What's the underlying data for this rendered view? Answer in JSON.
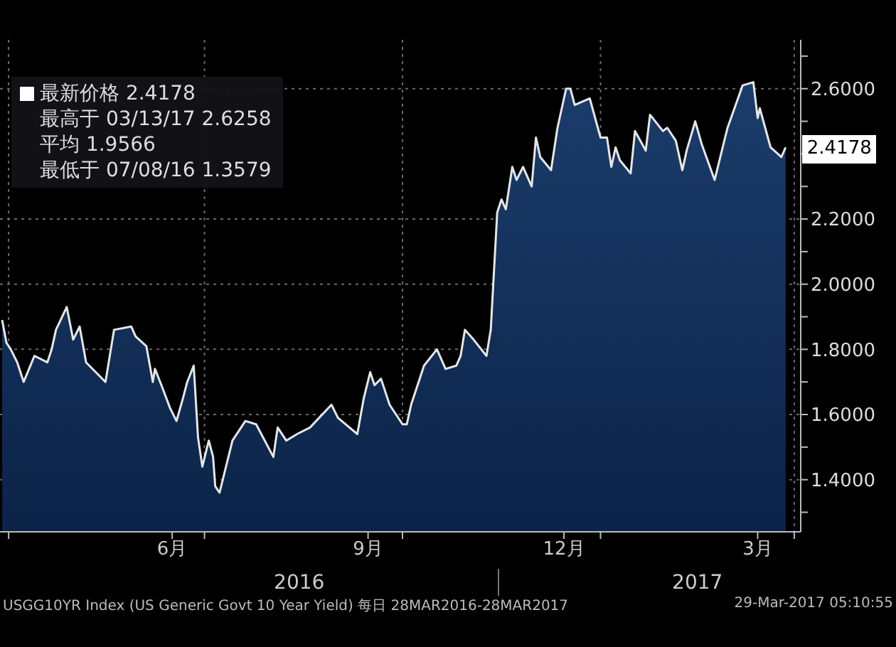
{
  "chart_data": {
    "type": "area",
    "x": [
      "2016-03-29",
      "2016-03-31",
      "2016-04-02",
      "2016-04-05",
      "2016-04-08",
      "2016-04-13",
      "2016-04-19",
      "2016-04-21",
      "2016-04-23",
      "2016-04-28",
      "2016-05-01",
      "2016-05-04",
      "2016-05-07",
      "2016-05-16",
      "2016-05-20",
      "2016-05-28",
      "2016-05-30",
      "2016-06-04",
      "2016-06-07",
      "2016-06-08",
      "2016-06-11",
      "2016-06-15",
      "2016-06-18",
      "2016-06-21",
      "2016-06-23",
      "2016-06-26",
      "2016-06-28",
      "2016-06-30",
      "2016-07-03",
      "2016-07-05",
      "2016-07-06",
      "2016-07-08",
      "2016-07-14",
      "2016-07-20",
      "2016-07-25",
      "2016-08-02",
      "2016-08-04",
      "2016-08-08",
      "2016-08-13",
      "2016-08-19",
      "2016-08-29",
      "2016-09-01",
      "2016-09-10",
      "2016-09-13",
      "2016-09-16",
      "2016-09-18",
      "2016-09-21",
      "2016-09-25",
      "2016-10-01",
      "2016-10-03",
      "2016-10-05",
      "2016-10-08",
      "2016-10-11",
      "2016-10-17",
      "2016-10-21",
      "2016-10-26",
      "2016-10-28",
      "2016-10-30",
      "2016-11-03",
      "2016-11-09",
      "2016-11-11",
      "2016-11-14",
      "2016-11-16",
      "2016-11-18",
      "2016-11-21",
      "2016-11-23",
      "2016-11-26",
      "2016-11-30",
      "2016-12-02",
      "2016-12-04",
      "2016-12-09",
      "2016-12-12",
      "2016-12-16",
      "2016-12-18",
      "2016-12-20",
      "2016-12-27",
      "2017-01-01",
      "2017-01-04",
      "2017-01-06",
      "2017-01-08",
      "2017-01-10",
      "2017-01-15",
      "2017-01-17",
      "2017-01-22",
      "2017-01-24",
      "2017-01-30",
      "2017-02-01",
      "2017-02-05",
      "2017-02-08",
      "2017-02-10",
      "2017-02-14",
      "2017-02-17",
      "2017-02-23",
      "2017-03-01",
      "2017-03-08",
      "2017-03-13",
      "2017-03-15",
      "2017-03-16",
      "2017-03-21",
      "2017-03-26",
      "2017-03-28"
    ],
    "series": [
      {
        "color": "#e6e6e6",
        "values": [
          1.89,
          1.82,
          1.8,
          1.76,
          1.7,
          1.78,
          1.76,
          1.8,
          1.86,
          1.93,
          1.83,
          1.87,
          1.76,
          1.7,
          1.86,
          1.87,
          1.84,
          1.81,
          1.7,
          1.74,
          1.69,
          1.62,
          1.58,
          1.65,
          1.7,
          1.75,
          1.53,
          1.44,
          1.52,
          1.47,
          1.38,
          1.36,
          1.52,
          1.58,
          1.57,
          1.47,
          1.56,
          1.52,
          1.54,
          1.56,
          1.63,
          1.59,
          1.54,
          1.65,
          1.73,
          1.69,
          1.71,
          1.63,
          1.57,
          1.57,
          1.63,
          1.69,
          1.75,
          1.8,
          1.74,
          1.75,
          1.78,
          1.86,
          1.83,
          1.78,
          1.86,
          2.22,
          2.26,
          2.23,
          2.36,
          2.32,
          2.36,
          2.3,
          2.45,
          2.39,
          2.35,
          2.48,
          2.6,
          2.6,
          2.55,
          2.57,
          2.45,
          2.45,
          2.36,
          2.42,
          2.38,
          2.34,
          2.47,
          2.41,
          2.52,
          2.47,
          2.48,
          2.44,
          2.35,
          2.41,
          2.5,
          2.43,
          2.32,
          2.48,
          2.61,
          2.62,
          2.51,
          2.54,
          2.42,
          2.39,
          2.42
        ]
      }
    ],
    "xlim": [
      "2016-03-28",
      "2017-04-04"
    ],
    "xticks": [
      {
        "value": "2016-04-01",
        "label": null
      },
      {
        "value": "2016-06-16",
        "label": "6月"
      },
      {
        "value": "2016-07-01",
        "label": null
      },
      {
        "value": "2016-09-15",
        "label": "9月"
      },
      {
        "value": "2016-10-01",
        "label": null
      },
      {
        "value": "2016-12-15",
        "label": "12月"
      },
      {
        "value": "2017-01-01",
        "label": null
      },
      {
        "value": "2017-03-15",
        "label": "3月"
      },
      {
        "value": "2017-04-01",
        "label": null
      }
    ],
    "x2lim": [
      "2016-03-28",
      "2017-04-04"
    ],
    "x2ticks": [
      {
        "value": "2016-08-14",
        "label": "2016"
      },
      {
        "value": "2017-02-15",
        "label": "2017"
      }
    ],
    "ylim": [
      1.24,
      2.75
    ],
    "yticks": [
      {
        "value": 1.3,
        "label": null
      },
      {
        "value": 1.4,
        "label": "1.4000"
      },
      {
        "value": 1.5,
        "label": null
      },
      {
        "value": 1.6,
        "label": "1.6000"
      },
      {
        "value": 1.7,
        "label": null
      },
      {
        "value": 1.8,
        "label": "1.8000"
      },
      {
        "value": 1.9,
        "label": null
      },
      {
        "value": 2.0,
        "label": "2.0000"
      },
      {
        "value": 2.1,
        "label": null
      },
      {
        "value": 2.2,
        "label": "2.2000"
      },
      {
        "value": 2.3,
        "label": null
      },
      {
        "value": 2.4,
        "label": null
      },
      {
        "value": 2.5,
        "label": null
      },
      {
        "value": 2.6,
        "label": "2.6000"
      },
      {
        "value": 2.7,
        "label": null
      }
    ],
    "grid": true,
    "annotations": [
      "最新价格 2.4178",
      "最高于 03/13/17 2.6258",
      "平均 1.9566",
      "最低于 07/08/16 1.3579",
      {
        "text": "2.4178",
        "x": "2017-03-28",
        "y": 2.4178
      },
      "USGG10YR Index (US Generic Govt 10 Year Yield) 每日 28MAR2016-28MAR2017",
      "29-Mar-2017 05:10:55"
    ]
  }
}
